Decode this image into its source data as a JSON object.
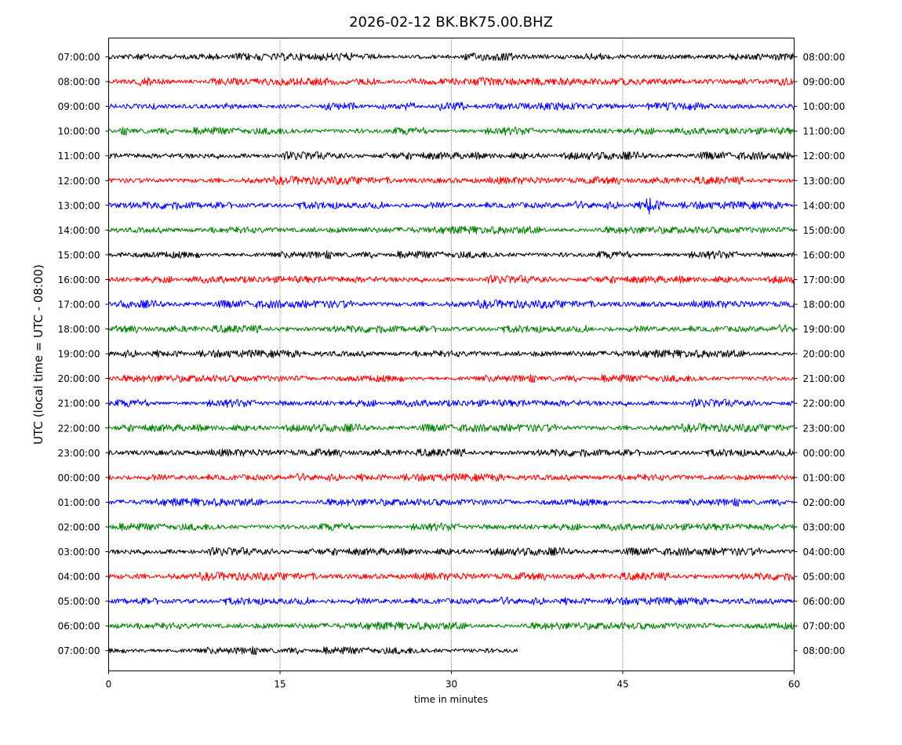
{
  "chart_data": {
    "type": "line",
    "title": "2026-02-12 BK.BK75.00.BHZ",
    "xlabel": "time in minutes",
    "ylabel": "UTC (local time = UTC - 08:00)",
    "xlim": [
      0,
      60
    ],
    "x_ticks": [
      0,
      15,
      30,
      45,
      60
    ],
    "vertical_gridlines": [
      15,
      30,
      45
    ],
    "colors": [
      "#000000",
      "#ff0000",
      "#0000ff",
      "#008000"
    ],
    "rows": [
      {
        "left_label": "07:00:00",
        "right_label": "08:00:00",
        "color": "#000000",
        "end_minute": 60
      },
      {
        "left_label": "08:00:00",
        "right_label": "09:00:00",
        "color": "#ff0000",
        "end_minute": 60
      },
      {
        "left_label": "09:00:00",
        "right_label": "10:00:00",
        "color": "#0000ff",
        "end_minute": 60
      },
      {
        "left_label": "10:00:00",
        "right_label": "11:00:00",
        "color": "#008000",
        "end_minute": 60
      },
      {
        "left_label": "11:00:00",
        "right_label": "12:00:00",
        "color": "#000000",
        "end_minute": 60
      },
      {
        "left_label": "12:00:00",
        "right_label": "13:00:00",
        "color": "#ff0000",
        "end_minute": 60
      },
      {
        "left_label": "13:00:00",
        "right_label": "14:00:00",
        "color": "#0000ff",
        "end_minute": 60,
        "event_minute": 47.2
      },
      {
        "left_label": "14:00:00",
        "right_label": "15:00:00",
        "color": "#008000",
        "end_minute": 60
      },
      {
        "left_label": "15:00:00",
        "right_label": "16:00:00",
        "color": "#000000",
        "end_minute": 60
      },
      {
        "left_label": "16:00:00",
        "right_label": "17:00:00",
        "color": "#ff0000",
        "end_minute": 60
      },
      {
        "left_label": "17:00:00",
        "right_label": "18:00:00",
        "color": "#0000ff",
        "end_minute": 60
      },
      {
        "left_label": "18:00:00",
        "right_label": "19:00:00",
        "color": "#008000",
        "end_minute": 60
      },
      {
        "left_label": "19:00:00",
        "right_label": "20:00:00",
        "color": "#000000",
        "end_minute": 60
      },
      {
        "left_label": "20:00:00",
        "right_label": "21:00:00",
        "color": "#ff0000",
        "end_minute": 60
      },
      {
        "left_label": "21:00:00",
        "right_label": "22:00:00",
        "color": "#0000ff",
        "end_minute": 60
      },
      {
        "left_label": "22:00:00",
        "right_label": "23:00:00",
        "color": "#008000",
        "end_minute": 60
      },
      {
        "left_label": "23:00:00",
        "right_label": "00:00:00",
        "color": "#000000",
        "end_minute": 60
      },
      {
        "left_label": "00:00:00",
        "right_label": "01:00:00",
        "color": "#ff0000",
        "end_minute": 60
      },
      {
        "left_label": "01:00:00",
        "right_label": "02:00:00",
        "color": "#0000ff",
        "end_minute": 60
      },
      {
        "left_label": "02:00:00",
        "right_label": "03:00:00",
        "color": "#008000",
        "end_minute": 60
      },
      {
        "left_label": "03:00:00",
        "right_label": "04:00:00",
        "color": "#000000",
        "end_minute": 60
      },
      {
        "left_label": "04:00:00",
        "right_label": "05:00:00",
        "color": "#ff0000",
        "end_minute": 60
      },
      {
        "left_label": "05:00:00",
        "right_label": "06:00:00",
        "color": "#0000ff",
        "end_minute": 60
      },
      {
        "left_label": "06:00:00",
        "right_label": "07:00:00",
        "color": "#008000",
        "end_minute": 60
      },
      {
        "left_label": "07:00:00",
        "right_label": "08:00:00",
        "color": "#000000",
        "end_minute": 35.8
      }
    ]
  }
}
